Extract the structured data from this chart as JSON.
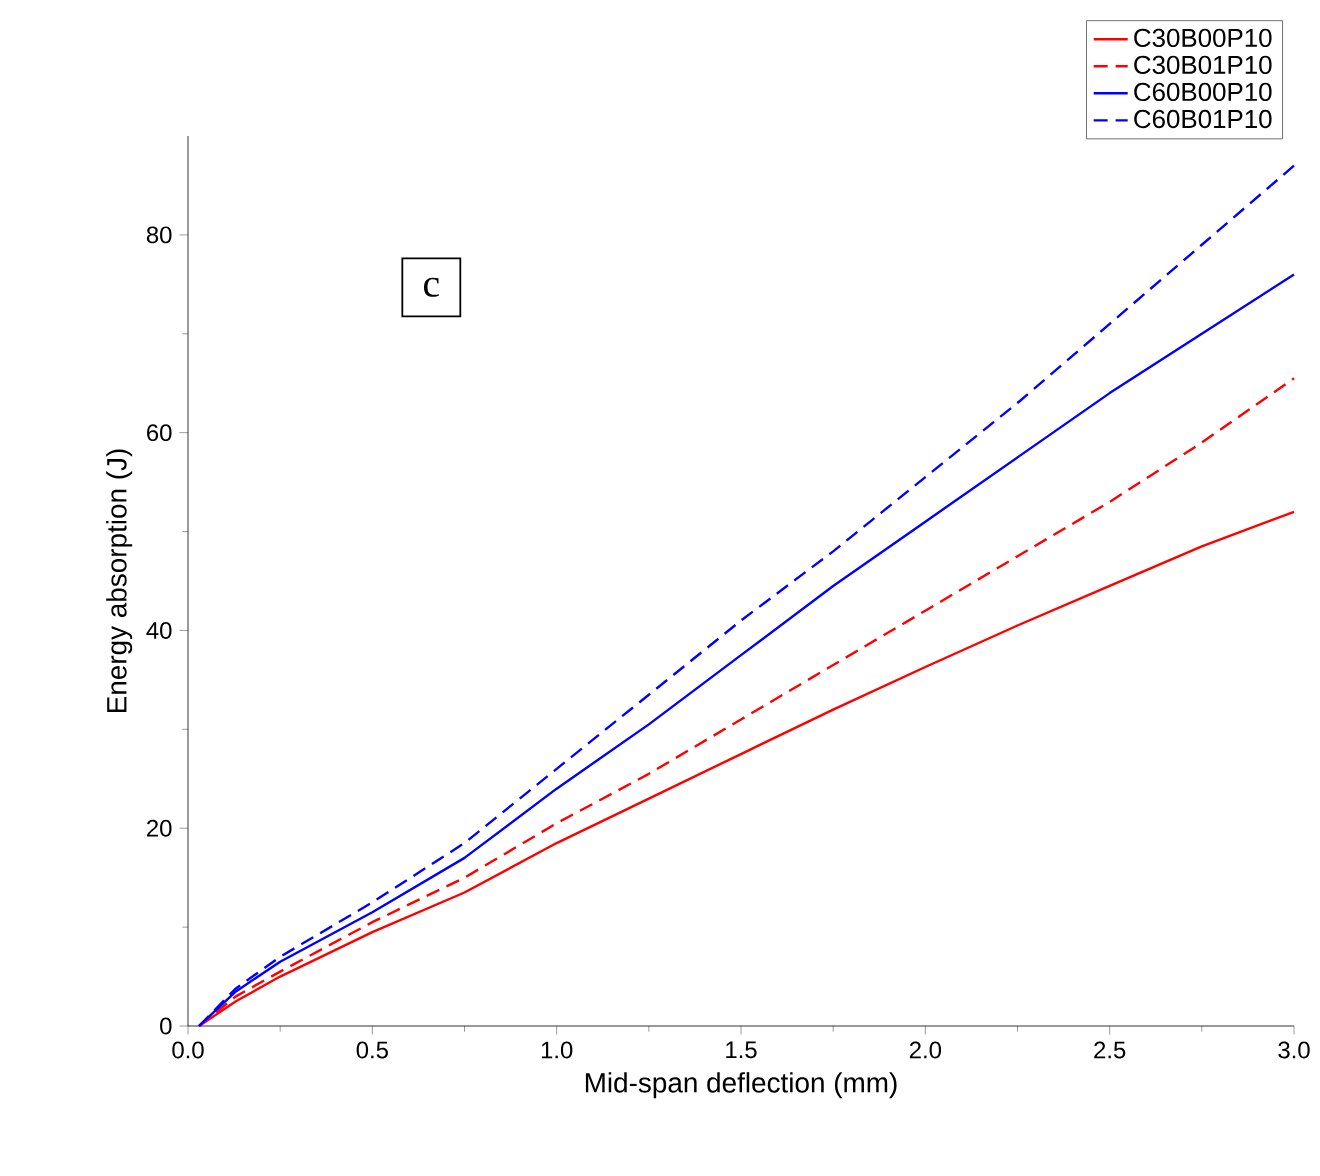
{
  "chart_data": {
    "type": "line",
    "xlabel": "Mid-span deflection (mm)",
    "ylabel": "Energy absorption (J)",
    "annotations": [
      "c"
    ],
    "xlim": [
      0,
      3
    ],
    "ylim": [
      0,
      90
    ],
    "xticks": [
      {
        "value": 0,
        "label": "0.0"
      },
      {
        "value": 0.5,
        "label": "0.5"
      },
      {
        "value": 1,
        "label": "1.0"
      },
      {
        "value": 1.5,
        "label": "1.5"
      },
      {
        "value": 2,
        "label": "2.0"
      },
      {
        "value": 2.5,
        "label": "2.5"
      },
      {
        "value": 3,
        "label": "3.0"
      }
    ],
    "yticks": [
      0,
      20,
      40,
      60,
      80
    ],
    "legend": "top right",
    "grid": false,
    "marker": "none",
    "series": [
      {
        "name": "C30B00P10",
        "color": "#ff0000",
        "line_style": "solid",
        "x": [
          0.03,
          0.13,
          0.25,
          0.5,
          0.75,
          1.0,
          1.25,
          1.5,
          1.75,
          2.0,
          2.25,
          2.5,
          2.75,
          3.0
        ],
        "values": [
          0,
          2.5,
          5,
          9.5,
          13.5,
          18.5,
          23,
          27.5,
          32,
          36.3,
          40.5,
          44.5,
          48.5,
          52
        ]
      },
      {
        "name": "C30B01P10",
        "color": "#ff0000",
        "line_style": "dashed",
        "x": [
          0.03,
          0.13,
          0.25,
          0.5,
          0.75,
          1.0,
          1.25,
          1.5,
          1.75,
          2.0,
          2.25,
          2.5,
          2.75,
          3.0
        ],
        "values": [
          0,
          3,
          5.5,
          10.5,
          15,
          20.5,
          25.5,
          31,
          36.5,
          42,
          47.5,
          53,
          59,
          65.5
        ]
      },
      {
        "name": "C60B00P10",
        "color": "#0000ff",
        "line_style": "solid",
        "x": [
          0.03,
          0.13,
          0.25,
          0.5,
          0.75,
          1.0,
          1.25,
          1.5,
          1.75,
          2.0,
          2.25,
          2.5,
          2.75,
          3.0
        ],
        "values": [
          0,
          3.5,
          6.5,
          11.5,
          17,
          24,
          30.5,
          37.5,
          44.5,
          51,
          57.5,
          64,
          70,
          76
        ]
      },
      {
        "name": "C60B01P10",
        "color": "#0000ff",
        "line_style": "dashed",
        "x": [
          0.03,
          0.13,
          0.25,
          0.5,
          0.75,
          1.0,
          1.25,
          1.5,
          1.75,
          2.0,
          2.25,
          2.5,
          2.75,
          3.0
        ],
        "values": [
          0,
          3.8,
          7,
          12.5,
          18.5,
          26,
          33.5,
          41,
          48,
          55.5,
          63,
          71,
          79,
          87
        ]
      }
    ]
  }
}
